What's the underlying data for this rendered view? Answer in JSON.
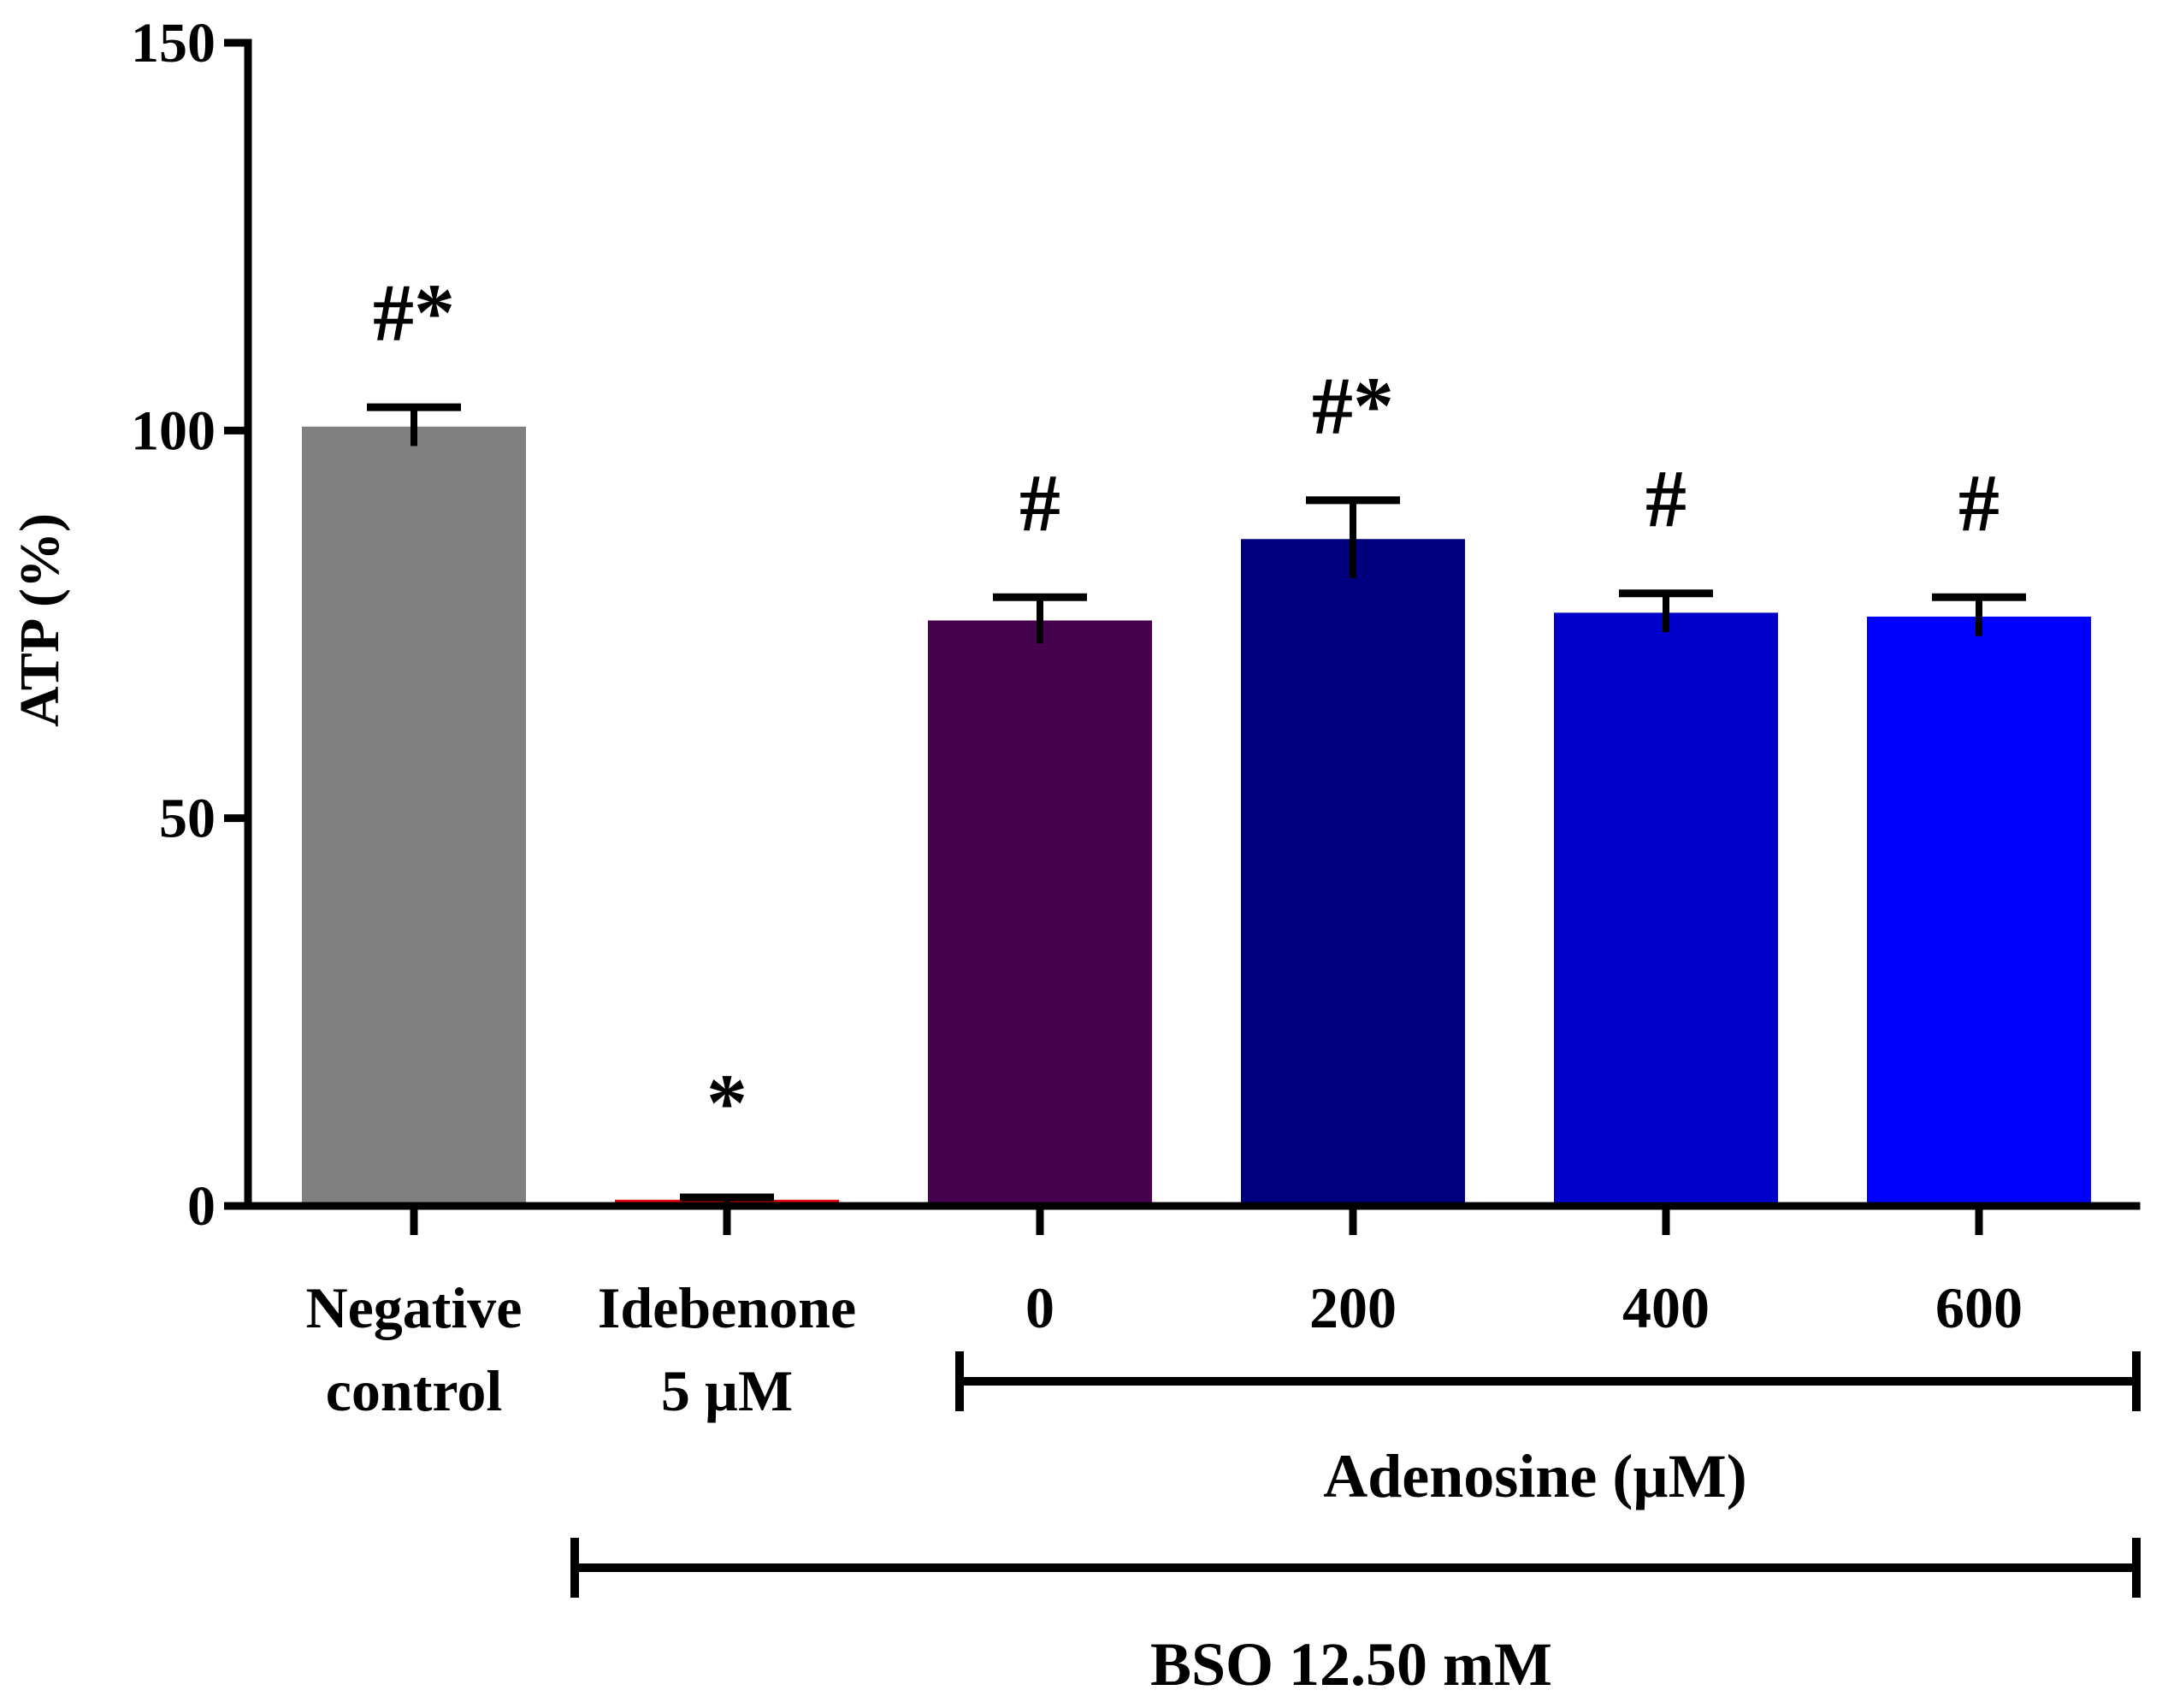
{
  "chart_data": {
    "type": "bar",
    "title": "",
    "xlabel": "",
    "ylabel": "ATP (%)",
    "ylim": [
      0,
      150
    ],
    "yticks": [
      0,
      50,
      100,
      150
    ],
    "grid": false,
    "bars": [
      {
        "label_lines": [
          "Negative",
          "control"
        ],
        "value": 100.5,
        "error": 2.5,
        "annotation": "#*",
        "color": "#808080"
      },
      {
        "label_lines": [
          "Idebenone",
          "5 µM"
        ],
        "value": 0.8,
        "error": 0.3,
        "annotation": "*",
        "color": "#e0000f"
      },
      {
        "label_lines": [
          "0"
        ],
        "value": 75.5,
        "error": 3.0,
        "annotation": "#",
        "color": "#46024e"
      },
      {
        "label_lines": [
          "200"
        ],
        "value": 86.0,
        "error": 5.0,
        "annotation": "#*",
        "color": "#00007f"
      },
      {
        "label_lines": [
          "400"
        ],
        "value": 76.5,
        "error": 2.5,
        "annotation": "#",
        "color": "#0000cc"
      },
      {
        "label_lines": [
          "600"
        ],
        "value": 76.0,
        "error": 2.5,
        "annotation": "#",
        "color": "#0000ff"
      }
    ],
    "groups": [
      {
        "label": "Adenosine (µM)",
        "from_bar": 2,
        "to_bar": 5
      },
      {
        "label": "BSO 12.50 mM",
        "from_bar": 1,
        "to_bar": 5
      }
    ]
  }
}
